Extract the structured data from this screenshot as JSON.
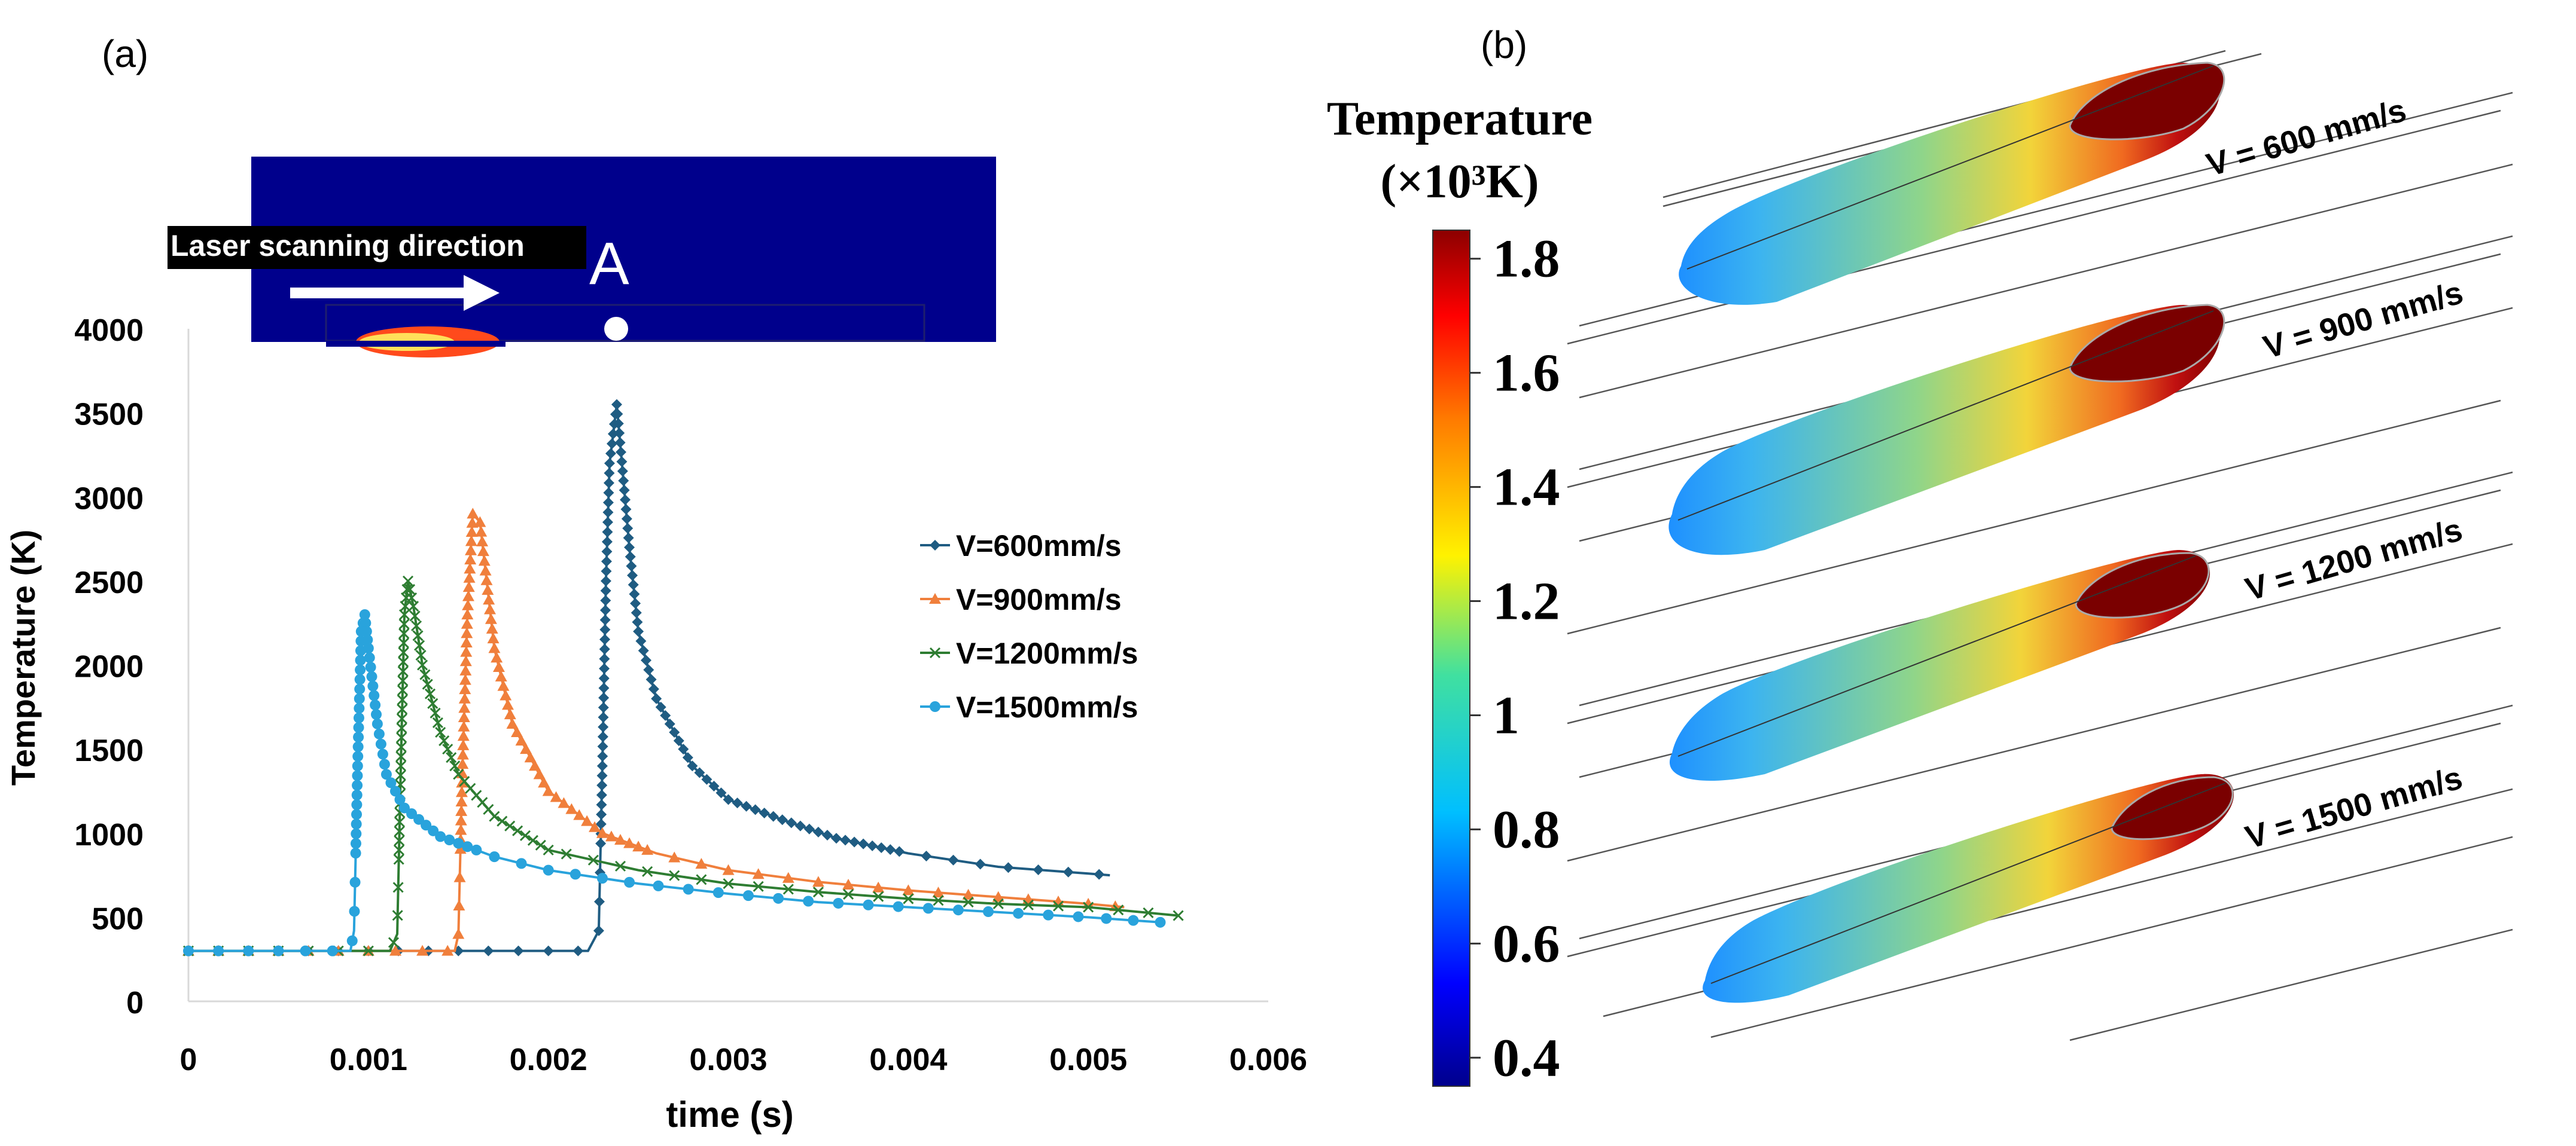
{
  "panel_a": {
    "label": "(a)",
    "inset": {
      "banner": "Laser scanning direction",
      "point_label": "A",
      "colors": {
        "substrate": "#00008C",
        "banner_bg": "#000000",
        "banner_text": "#FFFFFF"
      }
    }
  },
  "panel_b": {
    "label": "(b)",
    "colorbar": {
      "title_line1": "Temperature",
      "title_line2": "(×10³K)",
      "min": 0.35,
      "max": 1.85,
      "tick_labels": [
        "1.8",
        "1.6",
        "1.4",
        "1.2",
        "1",
        "0.8",
        "0.6",
        "0.4"
      ],
      "tick_values": [
        1.8,
        1.6,
        1.4,
        1.2,
        1.0,
        0.8,
        0.6,
        0.4
      ]
    },
    "pools": [
      {
        "label": "V = 600 mm/s"
      },
      {
        "label": "V = 900 mm/s"
      },
      {
        "label": "V = 1200 mm/s"
      },
      {
        "label": "V = 1500 mm/s"
      }
    ]
  },
  "chart_data": {
    "type": "line",
    "title": "",
    "xlabel": "time (s)",
    "ylabel": "Temperature (K)",
    "xlim": [
      0,
      0.006
    ],
    "ylim": [
      0,
      4000
    ],
    "x_ticks": [
      0,
      0.001,
      0.002,
      0.003,
      0.004,
      0.005,
      0.006
    ],
    "x_tick_labels": [
      "0",
      "0.001",
      "0.002",
      "0.003",
      "0.004",
      "0.005",
      "0.006"
    ],
    "y_ticks": [
      0,
      500,
      1000,
      1500,
      2000,
      2500,
      3000,
      3500,
      4000
    ],
    "y_tick_labels": [
      "0",
      "500",
      "1000",
      "1500",
      "2000",
      "2500",
      "3000",
      "3500",
      "4000"
    ],
    "grid": false,
    "legend_position": "right",
    "series": [
      {
        "name": "V=600mm/s",
        "color": "#1F5C82",
        "marker": "diamond",
        "points": [
          [
            0,
            300
          ],
          [
            0.0005,
            300
          ],
          [
            0.001,
            300
          ],
          [
            0.0015,
            300
          ],
          [
            0.002,
            300
          ],
          [
            0.00222,
            300
          ],
          [
            0.00228,
            420
          ],
          [
            0.0023,
            1400
          ],
          [
            0.00232,
            2500
          ],
          [
            0.00234,
            3200
          ],
          [
            0.00238,
            3550
          ],
          [
            0.00245,
            2700
          ],
          [
            0.0025,
            2200
          ],
          [
            0.0026,
            1800
          ],
          [
            0.0028,
            1400
          ],
          [
            0.003,
            1200
          ],
          [
            0.0033,
            1080
          ],
          [
            0.0036,
            970
          ],
          [
            0.004,
            880
          ],
          [
            0.0045,
            800
          ],
          [
            0.005,
            760
          ],
          [
            0.00512,
            750
          ]
        ]
      },
      {
        "name": "V=900mm/s",
        "color": "#F07F3C",
        "marker": "triangle",
        "points": [
          [
            0,
            300
          ],
          [
            0.0005,
            300
          ],
          [
            0.001,
            300
          ],
          [
            0.0014,
            300
          ],
          [
            0.00148,
            300
          ],
          [
            0.0015,
            400
          ],
          [
            0.00152,
            1300
          ],
          [
            0.00155,
            2300
          ],
          [
            0.00158,
            2900
          ],
          [
            0.00162,
            2850
          ],
          [
            0.0017,
            2100
          ],
          [
            0.0018,
            1650
          ],
          [
            0.002,
            1250
          ],
          [
            0.0023,
            1000
          ],
          [
            0.0026,
            880
          ],
          [
            0.003,
            780
          ],
          [
            0.0035,
            710
          ],
          [
            0.004,
            660
          ],
          [
            0.0045,
            620
          ],
          [
            0.005,
            580
          ],
          [
            0.0052,
            560
          ]
        ]
      },
      {
        "name": "V=1200mm/s",
        "color": "#2E7D32",
        "marker": "x",
        "points": [
          [
            0,
            300
          ],
          [
            0.0005,
            300
          ],
          [
            0.001,
            300
          ],
          [
            0.00112,
            300
          ],
          [
            0.00116,
            400
          ],
          [
            0.00118,
            1400
          ],
          [
            0.0012,
            2300
          ],
          [
            0.00122,
            2500
          ],
          [
            0.00125,
            2350
          ],
          [
            0.0013,
            2000
          ],
          [
            0.0014,
            1600
          ],
          [
            0.0015,
            1350
          ],
          [
            0.0017,
            1100
          ],
          [
            0.002,
            900
          ],
          [
            0.0025,
            780
          ],
          [
            0.003,
            700
          ],
          [
            0.0035,
            650
          ],
          [
            0.004,
            610
          ],
          [
            0.0045,
            580
          ],
          [
            0.005,
            560
          ],
          [
            0.0055,
            510
          ]
        ]
      },
      {
        "name": "V=1500mm/s",
        "color": "#29A3DC",
        "marker": "circle",
        "points": [
          [
            0,
            300
          ],
          [
            0.0005,
            300
          ],
          [
            0.0009,
            300
          ],
          [
            0.00092,
            420
          ],
          [
            0.00094,
            1400
          ],
          [
            0.00096,
            2200
          ],
          [
            0.00098,
            2300
          ],
          [
            0.001,
            2100
          ],
          [
            0.00105,
            1650
          ],
          [
            0.0011,
            1350
          ],
          [
            0.0012,
            1150
          ],
          [
            0.0014,
            980
          ],
          [
            0.0017,
            860
          ],
          [
            0.002,
            780
          ],
          [
            0.0025,
            700
          ],
          [
            0.003,
            640
          ],
          [
            0.0035,
            590
          ],
          [
            0.004,
            560
          ],
          [
            0.0045,
            530
          ],
          [
            0.005,
            500
          ],
          [
            0.0054,
            470
          ]
        ]
      }
    ]
  }
}
